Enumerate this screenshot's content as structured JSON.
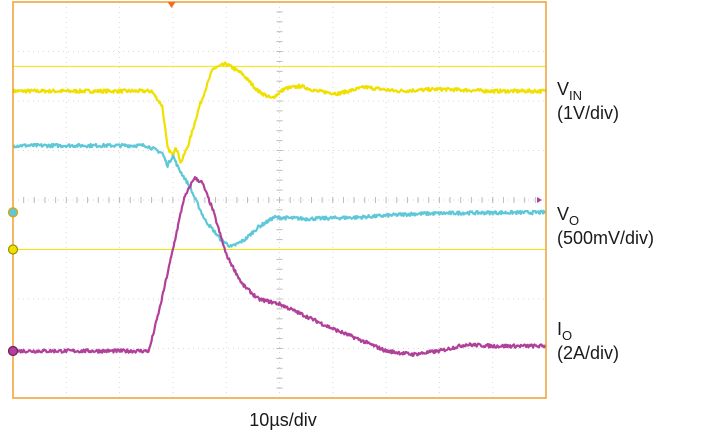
{
  "chart_data": {
    "type": "line",
    "title": "",
    "xlabel": "10µs/div",
    "ylabel": "",
    "grid": true,
    "xlim": [
      0,
      10
    ],
    "ylim": [
      -4,
      4
    ],
    "x_unit": "div",
    "y_unit": "div",
    "grid_divisions": {
      "x": 10,
      "y": 8
    },
    "reference_lines": [
      {
        "name": "upper",
        "color": "#f2e600",
        "y": 2.7
      },
      {
        "name": "lower",
        "color": "#f2e600",
        "y": -1.0
      }
    ],
    "series": [
      {
        "name": "VIN",
        "name_sub": "IN",
        "scale": "(1V/div)",
        "color": "#f0e000",
        "marker": "",
        "points": [
          [
            0,
            2.2
          ],
          [
            2.6,
            2.2
          ],
          [
            2.8,
            1.9
          ],
          [
            2.9,
            1.05
          ],
          [
            3.0,
            0.9
          ],
          [
            3.05,
            1.1
          ],
          [
            3.15,
            0.75
          ],
          [
            3.3,
            1.15
          ],
          [
            3.5,
            1.9
          ],
          [
            3.75,
            2.65
          ],
          [
            4.0,
            2.75
          ],
          [
            4.3,
            2.55
          ],
          [
            4.6,
            2.2
          ],
          [
            4.85,
            2.05
          ],
          [
            5.1,
            2.25
          ],
          [
            5.4,
            2.3
          ],
          [
            5.7,
            2.2
          ],
          [
            6.1,
            2.15
          ],
          [
            6.6,
            2.28
          ],
          [
            7.2,
            2.2
          ],
          [
            8.0,
            2.24
          ],
          [
            9.0,
            2.2
          ],
          [
            10.0,
            2.2
          ]
        ]
      },
      {
        "name": "VO",
        "name_sub": "O",
        "scale": "(500mV/div)",
        "color": "#5ec8d8",
        "marker": "circle",
        "points": [
          [
            0,
            1.1
          ],
          [
            2.5,
            1.1
          ],
          [
            2.8,
            0.95
          ],
          [
            2.9,
            0.7
          ],
          [
            3.0,
            0.9
          ],
          [
            3.1,
            0.65
          ],
          [
            3.3,
            0.3
          ],
          [
            3.6,
            -0.4
          ],
          [
            3.9,
            -0.8
          ],
          [
            4.1,
            -0.95
          ],
          [
            4.35,
            -0.8
          ],
          [
            4.6,
            -0.55
          ],
          [
            4.9,
            -0.35
          ],
          [
            5.5,
            -0.38
          ],
          [
            6.5,
            -0.35
          ],
          [
            7.5,
            -0.28
          ],
          [
            8.5,
            -0.26
          ],
          [
            10.0,
            -0.25
          ]
        ]
      },
      {
        "name": "IO",
        "name_sub": "O",
        "scale": "(2A/div)",
        "color": "#b0409a",
        "marker": "circle",
        "points": [
          [
            0,
            -3.05
          ],
          [
            2.55,
            -3.05
          ],
          [
            2.75,
            -2.2
          ],
          [
            3.0,
            -1.0
          ],
          [
            3.2,
            0.0
          ],
          [
            3.4,
            0.45
          ],
          [
            3.55,
            0.35
          ],
          [
            3.75,
            -0.2
          ],
          [
            4.0,
            -1.1
          ],
          [
            4.3,
            -1.7
          ],
          [
            4.6,
            -2.0
          ],
          [
            5.0,
            -2.1
          ],
          [
            5.5,
            -2.35
          ],
          [
            6.0,
            -2.6
          ],
          [
            6.5,
            -2.82
          ],
          [
            7.0,
            -3.05
          ],
          [
            7.5,
            -3.12
          ],
          [
            8.0,
            -3.05
          ],
          [
            8.5,
            -2.92
          ],
          [
            9.0,
            -2.95
          ],
          [
            10.0,
            -2.95
          ]
        ]
      }
    ]
  }
}
